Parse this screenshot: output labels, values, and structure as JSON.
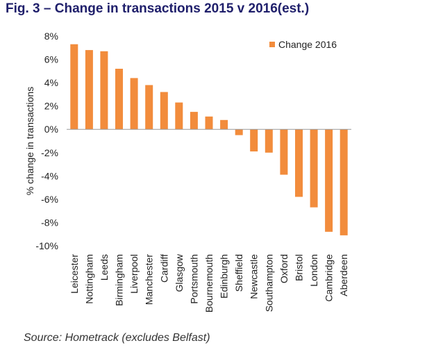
{
  "header": {
    "title": "Fig. 3 – Change in transactions 2015 v 2016(est.)"
  },
  "footer": {
    "source": "Source: Hometrack (excludes Belfast)"
  },
  "chart_data": {
    "type": "bar",
    "title": "Fig. 3 – Change in transactions 2015 v 2016(est.)",
    "xlabel": "",
    "ylabel": "% change in transactions",
    "ylim": [
      -10,
      8
    ],
    "yticks": [
      8,
      6,
      4,
      2,
      0,
      -2,
      -4,
      -6,
      -8,
      -10
    ],
    "ytick_labels": [
      "8%",
      "6%",
      "4%",
      "2%",
      "0%",
      "-2%",
      "-4%",
      "-6%",
      "-8%",
      "-10%"
    ],
    "legend": {
      "position": "top-right",
      "entries": [
        "Change 2016"
      ]
    },
    "grid": false,
    "series": [
      {
        "name": "Change 2016",
        "color": "#f28c3c",
        "values": [
          7.3,
          6.8,
          6.7,
          5.2,
          4.4,
          3.8,
          3.2,
          2.3,
          1.5,
          1.1,
          0.8,
          -0.5,
          -1.9,
          -2.0,
          -3.9,
          -5.8,
          -6.7,
          -8.8,
          -9.1
        ]
      }
    ],
    "categories": [
      "Leicester",
      "Nottingham",
      "Leeds",
      "Birmingham",
      "Liverpool",
      "Manchester",
      "Cardiff",
      "Glasgow",
      "Portsmouth",
      "Bournemouth",
      "Edinburgh",
      "Sheffield",
      "Newcastle",
      "Southampton",
      "Oxford",
      "Bristol",
      "London",
      "Cambridge",
      "Aberdeen"
    ]
  }
}
